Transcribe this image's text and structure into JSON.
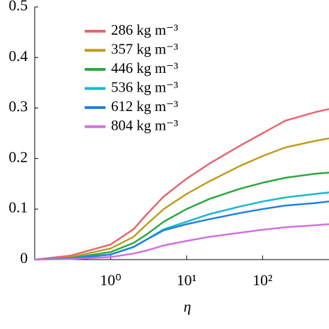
{
  "chart_data": {
    "type": "line",
    "x_label": "η",
    "log_x": true,
    "x": [
      0.1,
      0.3,
      1,
      2,
      3,
      5,
      10,
      20,
      50,
      100,
      200,
      500,
      750
    ],
    "series": [
      {
        "name": "286 kg m⁻³",
        "color": "#e8646e",
        "values": [
          0,
          0.008,
          0.03,
          0.06,
          0.09,
          0.125,
          0.16,
          0.19,
          0.225,
          0.25,
          0.275,
          0.292,
          0.298
        ]
      },
      {
        "name": "357 kg m⁻³",
        "color": "#c09a1c",
        "values": [
          0,
          0.005,
          0.022,
          0.045,
          0.07,
          0.1,
          0.13,
          0.155,
          0.185,
          0.205,
          0.222,
          0.235,
          0.24
        ]
      },
      {
        "name": "446 kg m⁻³",
        "color": "#28a840",
        "values": [
          0,
          0.003,
          0.015,
          0.033,
          0.05,
          0.075,
          0.1,
          0.12,
          0.14,
          0.152,
          0.162,
          0.17,
          0.172
        ]
      },
      {
        "name": "536 kg m⁻³",
        "color": "#1ab8cc",
        "values": [
          0,
          0.002,
          0.01,
          0.025,
          0.04,
          0.06,
          0.075,
          0.09,
          0.105,
          0.115,
          0.123,
          0.13,
          0.133
        ]
      },
      {
        "name": "612 kg m⁻³",
        "color": "#2080e0",
        "values": [
          0,
          0.002,
          0.01,
          0.025,
          0.04,
          0.058,
          0.07,
          0.08,
          0.092,
          0.1,
          0.107,
          0.112,
          0.115
        ]
      },
      {
        "name": "804 kg m⁻³",
        "color": "#d070e0",
        "values": [
          0,
          0.001,
          0.005,
          0.012,
          0.018,
          0.028,
          0.037,
          0.045,
          0.053,
          0.059,
          0.064,
          0.068,
          0.07
        ]
      }
    ],
    "xlim": [
      0.1,
      750
    ],
    "ylim": [
      0,
      0.5
    ],
    "xticks": [
      {
        "value": 1,
        "label": "10⁰"
      },
      {
        "value": 10,
        "label": "10¹"
      },
      {
        "value": 100,
        "label": "10²"
      }
    ],
    "yticks": [
      0,
      0.1,
      0.2,
      0.3,
      0.4,
      0.5
    ]
  }
}
